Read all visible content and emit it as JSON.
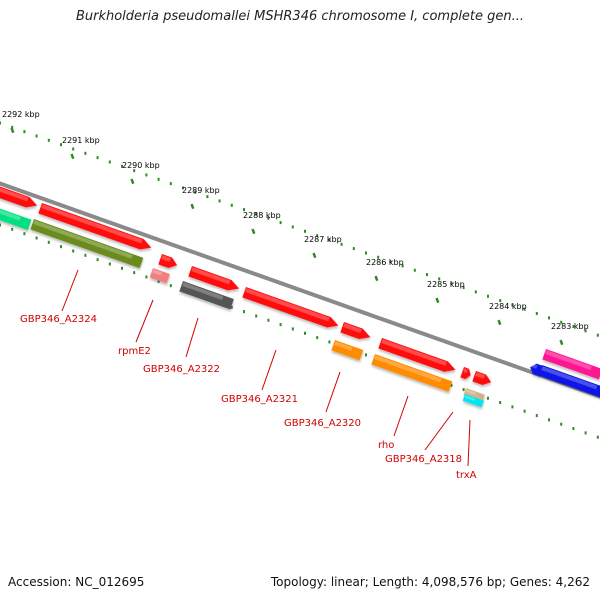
{
  "title": "Burkholderia pseudomallei MSHR346 chromosome I, complete gen...",
  "footer": {
    "accession": "Accession: NC_012695",
    "topology": "Topology: linear; Length: 4,098,576 bp; Genes: 4,262"
  },
  "ticks": [
    {
      "label": "2292 kbp",
      "kbp": 2292
    },
    {
      "label": "2291 kbp",
      "kbp": 2291
    },
    {
      "label": "2290 kbp",
      "kbp": 2290
    },
    {
      "label": "2289 kbp",
      "kbp": 2289
    },
    {
      "label": "2288 kbp",
      "kbp": 2288
    },
    {
      "label": "2287 kbp",
      "kbp": 2287
    },
    {
      "label": "2286 kbp",
      "kbp": 2286
    },
    {
      "label": "2285 kbp",
      "kbp": 2285
    },
    {
      "label": "2284 kbp",
      "kbp": 2284
    },
    {
      "label": "2283 kbp",
      "kbp": 2283
    }
  ],
  "gene_labels": [
    {
      "name": "GBP346_A2324",
      "color": "#d10000"
    },
    {
      "name": "rpmE2",
      "color": "#d10000"
    },
    {
      "name": "GBP346_A2322",
      "color": "#d10000"
    },
    {
      "name": "GBP346_A2321",
      "color": "#d10000"
    },
    {
      "name": "GBP346_A2320",
      "color": "#d10000"
    },
    {
      "name": "rho",
      "color": "#d10000"
    },
    {
      "name": "GBP346_A2318",
      "color": "#d10000"
    },
    {
      "name": "trxA",
      "color": "#d10000"
    }
  ],
  "colors": {
    "red": "#ff1010",
    "olive": "#6b8c1f",
    "salmon": "#f08080",
    "gray": "#555555",
    "orange": "#ff8c00",
    "tan": "#d2b48c",
    "cyan": "#00e5ee",
    "magenta": "#ff1493",
    "blue": "#0a14e6",
    "green": "#00e080",
    "axis": "#8a8a8a",
    "tick_green": "#2e8b22"
  }
}
